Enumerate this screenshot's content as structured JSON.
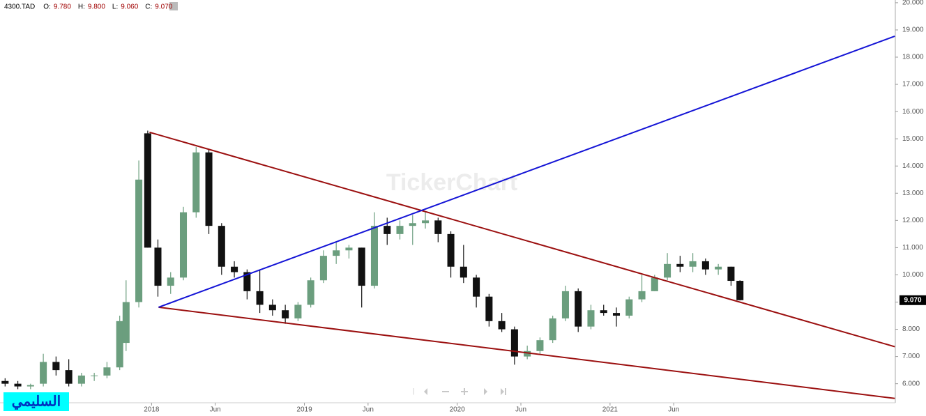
{
  "chart_data": {
    "type": "candlestick",
    "title": "4300.TAD",
    "ohlc_legend": [
      {
        "label": "O:",
        "value": "9.780"
      },
      {
        "label": "H:",
        "value": "9.800"
      },
      {
        "label": "L:",
        "value": "9.060"
      },
      {
        "label": "C:",
        "value": "9.070"
      }
    ],
    "watermark": "TickerChart",
    "author_tag": "السليمي",
    "last_price": {
      "value": 9.07,
      "label": "9.070"
    },
    "up_color": "#6b9e7e",
    "down_color": "#111111",
    "xlim": [
      -11.9,
      58.4
    ],
    "ylim": [
      5.3,
      20.1
    ],
    "xticks": [
      {
        "value": 0,
        "label": "2018"
      },
      {
        "value": 5,
        "label": "Jun"
      },
      {
        "value": 12,
        "label": "2019"
      },
      {
        "value": 17,
        "label": "Jun"
      },
      {
        "value": 24,
        "label": "2020"
      },
      {
        "value": 29,
        "label": "Jun"
      },
      {
        "value": 36,
        "label": "2021"
      },
      {
        "value": 41,
        "label": "Jun"
      }
    ],
    "yticks": [
      {
        "value": 6,
        "label": "6.000"
      },
      {
        "value": 7,
        "label": "7.000"
      },
      {
        "value": 8,
        "label": "8.000"
      },
      {
        "value": 9,
        "label": "9.000"
      },
      {
        "value": 10,
        "label": "10.000"
      },
      {
        "value": 11,
        "label": "11.000"
      },
      {
        "value": 12,
        "label": "12.000"
      },
      {
        "value": 13,
        "label": "13.000"
      },
      {
        "value": 14,
        "label": "14.000"
      },
      {
        "value": 15,
        "label": "15.000"
      },
      {
        "value": 16,
        "label": "16.000"
      },
      {
        "value": 17,
        "label": "17.000"
      },
      {
        "value": 18,
        "label": "18.000"
      },
      {
        "value": 19,
        "label": "19.000"
      },
      {
        "value": 20,
        "label": "20.000"
      }
    ],
    "x": [
      -11.5,
      -10.5,
      -9.5,
      -8.5,
      -7.5,
      -6.5,
      -5.5,
      -4.5,
      -3.5,
      -2.5,
      -2,
      -1,
      -0.3,
      0.5,
      1.5,
      2.5,
      3.5,
      4.5,
      5.5,
      6.5,
      7.5,
      8.5,
      9.5,
      10.5,
      11.5,
      12.5,
      13.5,
      14.5,
      15.5,
      16.5,
      17.5,
      18.5,
      19.5,
      20.5,
      21.5,
      22.5,
      23.5,
      24.5,
      25.5,
      26.5,
      27.5,
      28.5,
      29.5,
      30.5,
      31.5,
      32.5,
      33.5,
      34.5,
      35.5,
      36.5,
      37.5,
      38.5,
      39.5,
      40.5,
      41.5,
      42.5,
      43.5,
      44.5,
      45.5,
      46.2
    ],
    "open": [
      6.1,
      6.0,
      5.9,
      6.0,
      6.8,
      6.5,
      6.0,
      6.3,
      6.3,
      6.6,
      7.5,
      9.0,
      15.2,
      11.0,
      9.6,
      9.9,
      12.3,
      14.5,
      11.8,
      10.3,
      10.1,
      9.4,
      8.9,
      8.7,
      8.4,
      8.9,
      9.8,
      10.7,
      10.9,
      11.0,
      9.6,
      11.8,
      11.5,
      11.8,
      11.9,
      12.0,
      11.5,
      10.3,
      9.9,
      9.2,
      8.3,
      8.0,
      7.0,
      7.2,
      7.6,
      8.4,
      9.4,
      8.1,
      8.7,
      8.6,
      8.5,
      9.1,
      9.4,
      9.9,
      10.4,
      10.3,
      10.5,
      10.2,
      10.3,
      9.78
    ],
    "high": [
      6.2,
      6.1,
      6.0,
      7.1,
      7.0,
      6.9,
      6.4,
      6.4,
      6.8,
      8.5,
      9.8,
      14.2,
      15.3,
      11.3,
      10.1,
      12.5,
      14.7,
      14.6,
      11.9,
      10.5,
      10.2,
      10.2,
      9.1,
      8.9,
      9.0,
      9.9,
      10.9,
      11.2,
      11.1,
      11.0,
      12.3,
      12.1,
      12.0,
      12.2,
      12.3,
      12.1,
      11.6,
      11.1,
      10.0,
      9.3,
      8.6,
      8.1,
      7.4,
      7.7,
      8.5,
      9.6,
      9.5,
      8.9,
      8.9,
      8.8,
      9.2,
      10.0,
      10.0,
      10.8,
      10.7,
      10.8,
      10.6,
      10.4,
      10.3,
      9.8
    ],
    "low": [
      5.9,
      5.8,
      5.8,
      5.9,
      6.3,
      5.9,
      5.9,
      6.1,
      6.2,
      6.5,
      7.2,
      8.8,
      11.0,
      9.2,
      9.3,
      9.8,
      12.1,
      11.5,
      10.0,
      9.9,
      9.1,
      8.6,
      8.5,
      8.2,
      8.3,
      8.8,
      9.7,
      10.4,
      10.6,
      8.8,
      9.5,
      11.1,
      11.3,
      11.1,
      11.7,
      11.2,
      9.9,
      9.7,
      8.8,
      8.1,
      7.9,
      6.7,
      6.9,
      7.1,
      7.5,
      8.3,
      7.9,
      8.0,
      8.5,
      8.1,
      8.4,
      9.0,
      9.4,
      9.8,
      10.1,
      10.1,
      10.0,
      10.0,
      9.6,
      9.06
    ],
    "close": [
      6.0,
      5.9,
      5.95,
      6.8,
      6.5,
      6.0,
      6.3,
      6.3,
      6.6,
      8.3,
      9.0,
      13.5,
      11.0,
      9.6,
      9.9,
      12.3,
      14.5,
      11.8,
      10.3,
      10.1,
      9.4,
      8.9,
      8.7,
      8.4,
      8.9,
      9.8,
      10.7,
      10.9,
      11.0,
      9.6,
      11.8,
      11.5,
      11.8,
      11.9,
      12.0,
      11.5,
      10.3,
      9.9,
      9.2,
      8.3,
      8.0,
      7.0,
      7.2,
      7.6,
      8.4,
      9.4,
      8.1,
      8.7,
      8.6,
      8.5,
      9.1,
      9.4,
      9.9,
      10.4,
      10.3,
      10.5,
      10.2,
      10.3,
      9.78,
      9.07
    ],
    "trend_lines": [
      {
        "color": "#9b0f0f",
        "x": [
          -0.16,
          58.36
        ],
        "y": [
          15.24,
          7.36
        ]
      },
      {
        "color": "#9b0f0f",
        "x": [
          0.55,
          58.36
        ],
        "y": [
          8.81,
          5.46
        ]
      },
      {
        "color": "#1414d6",
        "x": [
          0.55,
          58.36
        ],
        "y": [
          8.81,
          18.77
        ]
      }
    ]
  }
}
